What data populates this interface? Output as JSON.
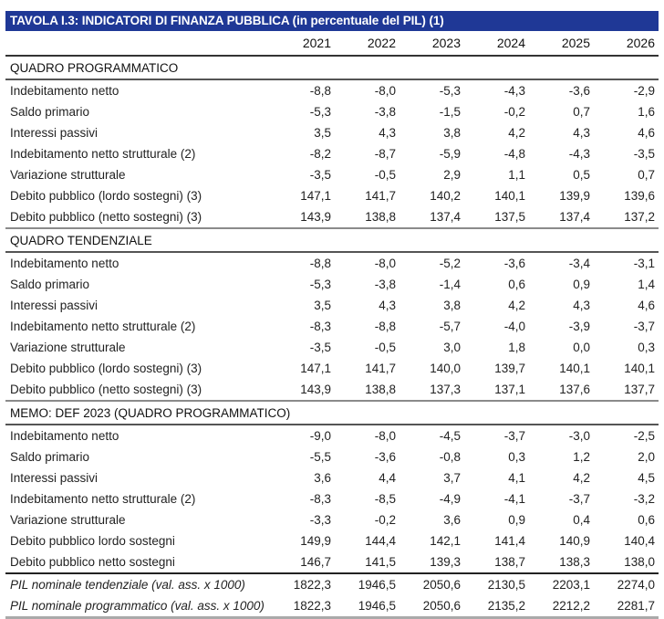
{
  "title": "TAVOLA I.3: INDICATORI DI FINANZA PUBBLICA (in percentuale del PIL) (1)",
  "colors": {
    "title_bar": "#1f3896",
    "title_text": "#ffffff"
  },
  "years": [
    "2021",
    "2022",
    "2023",
    "2024",
    "2025",
    "2026"
  ],
  "sections": [
    {
      "heading": "QUADRO PROGRAMMATICO",
      "rows": [
        {
          "label": "Indebitamento netto",
          "values": [
            "-8,8",
            "-8,0",
            "-5,3",
            "-4,3",
            "-3,6",
            "-2,9"
          ]
        },
        {
          "label": "Saldo primario",
          "values": [
            "-5,3",
            "-3,8",
            "-1,5",
            "-0,2",
            "0,7",
            "1,6"
          ]
        },
        {
          "label": "Interessi passivi",
          "values": [
            "3,5",
            "4,3",
            "3,8",
            "4,2",
            "4,3",
            "4,6"
          ]
        },
        {
          "label": "Indebitamento netto strutturale (2)",
          "values": [
            "-8,2",
            "-8,7",
            "-5,9",
            "-4,8",
            "-4,3",
            "-3,5"
          ]
        },
        {
          "label": "Variazione strutturale",
          "values": [
            "-3,5",
            "-0,5",
            "2,9",
            "1,1",
            "0,5",
            "0,7"
          ]
        },
        {
          "label": "Debito pubblico (lordo sostegni) (3)",
          "values": [
            "147,1",
            "141,7",
            "140,2",
            "140,1",
            "139,9",
            "139,6"
          ]
        },
        {
          "label": "Debito pubblico (netto sostegni) (3)",
          "values": [
            "143,9",
            "138,8",
            "137,4",
            "137,5",
            "137,4",
            "137,2"
          ]
        }
      ]
    },
    {
      "heading": "QUADRO TENDENZIALE",
      "rows": [
        {
          "label": "Indebitamento netto",
          "values": [
            "-8,8",
            "-8,0",
            "-5,2",
            "-3,6",
            "-3,4",
            "-3,1"
          ]
        },
        {
          "label": "Saldo primario",
          "values": [
            "-5,3",
            "-3,8",
            "-1,4",
            "0,6",
            "0,9",
            "1,4"
          ]
        },
        {
          "label": "Interessi passivi",
          "values": [
            "3,5",
            "4,3",
            "3,8",
            "4,2",
            "4,3",
            "4,6"
          ]
        },
        {
          "label": "Indebitamento netto strutturale (2)",
          "values": [
            "-8,3",
            "-8,8",
            "-5,7",
            "-4,0",
            "-3,9",
            "-3,7"
          ]
        },
        {
          "label": "Variazione strutturale",
          "values": [
            "-3,5",
            "-0,5",
            "3,0",
            "1,8",
            "0,0",
            "0,3"
          ]
        },
        {
          "label": "Debito pubblico (lordo sostegni) (3)",
          "values": [
            "147,1",
            "141,7",
            "140,0",
            "139,7",
            "140,1",
            "140,1"
          ]
        },
        {
          "label": "Debito pubblico (netto sostegni) (3)",
          "values": [
            "143,9",
            "138,8",
            "137,3",
            "137,1",
            "137,6",
            "137,7"
          ]
        }
      ]
    },
    {
      "heading": "MEMO: DEF 2023 (QUADRO PROGRAMMATICO)",
      "rows": [
        {
          "label": "Indebitamento netto",
          "values": [
            "-9,0",
            "-8,0",
            "-4,5",
            "-3,7",
            "-3,0",
            "-2,5"
          ]
        },
        {
          "label": "Saldo primario",
          "values": [
            "-5,5",
            "-3,6",
            "-0,8",
            "0,3",
            "1,2",
            "2,0"
          ]
        },
        {
          "label": "Interessi passivi",
          "values": [
            "3,6",
            "4,4",
            "3,7",
            "4,1",
            "4,2",
            "4,5"
          ]
        },
        {
          "label": "Indebitamento netto strutturale (2)",
          "values": [
            "-8,3",
            "-8,5",
            "-4,9",
            "-4,1",
            "-3,7",
            "-3,2"
          ]
        },
        {
          "label": "Variazione strutturale",
          "values": [
            "-3,3",
            "-0,2",
            "3,6",
            "0,9",
            "0,4",
            "0,6"
          ]
        },
        {
          "label": "Debito pubblico lordo sostegni",
          "values": [
            "149,9",
            "144,4",
            "142,1",
            "141,4",
            "140,9",
            "140,4"
          ]
        },
        {
          "label": "Debito pubblico netto sostegni",
          "values": [
            "146,7",
            "141,5",
            "139,3",
            "138,7",
            "138,3",
            "138,0"
          ]
        }
      ]
    }
  ],
  "pil_rows": [
    {
      "label": "PIL nominale tendenziale (val. ass.  x 1000)",
      "values": [
        "1822,3",
        "1946,5",
        "2050,6",
        "2130,5",
        "2203,1",
        "2274,0"
      ]
    },
    {
      "label": "PIL nominale programmatico (val. ass. x 1000)",
      "values": [
        "1822,3",
        "1946,5",
        "2050,6",
        "2135,2",
        "2212,2",
        "2281,7"
      ]
    }
  ]
}
